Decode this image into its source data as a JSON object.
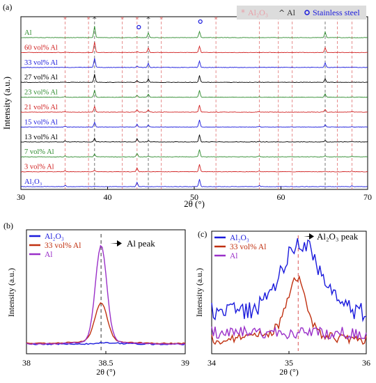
{
  "chart_data": [
    {
      "id": "a",
      "panel_label": "(a)",
      "type": "line",
      "title": "",
      "xlabel": "2θ (°)",
      "ylabel": "Intensity (a.u.)",
      "xlim": [
        30,
        70
      ],
      "xticks": [
        30,
        40,
        50,
        60,
        70
      ],
      "legend": [
        {
          "symbol": "*",
          "label": "Al₂O₃",
          "color": "#e8a0a8"
        },
        {
          "symbol": "^",
          "label": "Al",
          "color": "#333333"
        },
        {
          "symbol": "o",
          "label": "Stainless steel",
          "color": "#1a1adc"
        }
      ],
      "legend_position": "top-right",
      "reference_lines": {
        "al2o3": [
          35.1,
          37.8,
          41.7,
          43.4,
          46.2,
          52.5,
          57.5,
          59.7,
          61.3,
          66.5,
          68.2
        ],
        "al": [
          38.5,
          44.7,
          65.1
        ],
        "stainless_steel": [
          43.6,
          50.7
        ]
      },
      "series": [
        {
          "name": "Al",
          "color": "#2e8b2e"
        },
        {
          "name": "60 vol% Al",
          "color": "#d02020"
        },
        {
          "name": "33 vol% Al",
          "color": "#1a1adc"
        },
        {
          "name": "27 vol% Al",
          "color": "#000000"
        },
        {
          "name": "23 vol% Al",
          "color": "#2e8b2e"
        },
        {
          "name": "21 vol% Al",
          "color": "#d02020"
        },
        {
          "name": "15 vol% Al",
          "color": "#1a1adc"
        },
        {
          "name": "13 vol% Al",
          "color": "#000000"
        },
        {
          "name": "7 vol% Al",
          "color": "#2e8b2e"
        },
        {
          "name": "3 vol% Al",
          "color": "#d02020"
        },
        {
          "name": "Al₂O₃",
          "color": "#1a1adc"
        }
      ]
    },
    {
      "id": "b",
      "panel_label": "(b)",
      "type": "line",
      "xlabel": "2θ (°)",
      "ylabel": "Intensity (a.u.)",
      "xlim": [
        38,
        39
      ],
      "xticks": [
        38,
        38.5,
        39
      ],
      "marker_line_x": 38.47,
      "annotation": "Al peak",
      "legend_position": "top-left",
      "series": [
        {
          "name": "Al₂O₃",
          "color": "#1a1adc"
        },
        {
          "name": "33 vol% Al",
          "color": "#c03010"
        },
        {
          "name": "Al",
          "color": "#9a30c8"
        }
      ]
    },
    {
      "id": "c",
      "panel_label": "(c)",
      "type": "line",
      "xlabel": "2θ (°)",
      "ylabel": "Intensity (a.u.)",
      "xlim": [
        34,
        36
      ],
      "xticks": [
        34,
        35,
        36
      ],
      "marker_line_x": 35.12,
      "annotation": "Al₂O₃ peak",
      "legend_position": "top-left",
      "series": [
        {
          "name": "Al₂O₃",
          "color": "#1a1adc"
        },
        {
          "name": "33 vol% Al",
          "color": "#c03010"
        },
        {
          "name": "Al",
          "color": "#9a30c8"
        }
      ]
    }
  ]
}
